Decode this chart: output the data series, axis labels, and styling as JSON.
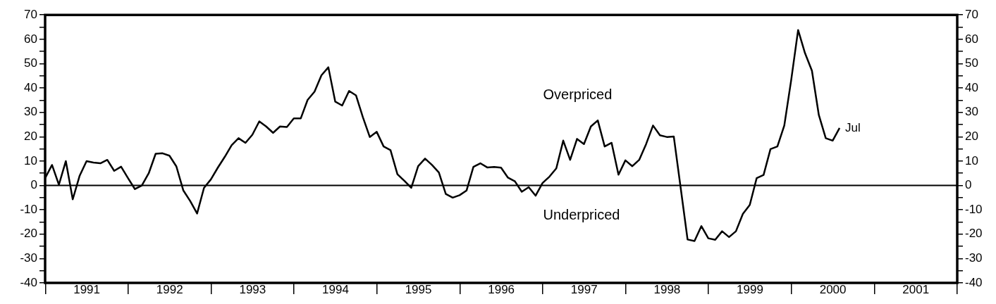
{
  "chart_data": {
    "type": "line",
    "x": [
      "1990-12-31",
      "1991-01-31",
      "1991-02-28",
      "1991-03-31",
      "1991-04-30",
      "1991-05-31",
      "1991-06-30",
      "1991-07-31",
      "1991-08-31",
      "1991-09-30",
      "1991-10-31",
      "1991-11-30",
      "1991-12-31",
      "1992-01-31",
      "1992-02-29",
      "1992-03-31",
      "1992-04-30",
      "1992-05-31",
      "1992-06-30",
      "1992-07-31",
      "1992-08-31",
      "1992-09-30",
      "1992-10-31",
      "1992-11-30",
      "1992-12-31",
      "1993-01-31",
      "1993-02-28",
      "1993-03-31",
      "1993-04-30",
      "1993-05-31",
      "1993-06-30",
      "1993-07-31",
      "1993-08-31",
      "1993-09-30",
      "1993-10-31",
      "1993-11-30",
      "1993-12-31",
      "1994-01-31",
      "1994-02-28",
      "1994-03-31",
      "1994-04-30",
      "1994-05-31",
      "1994-06-30",
      "1994-07-31",
      "1994-08-31",
      "1994-09-30",
      "1994-10-31",
      "1994-11-30",
      "1994-12-31",
      "1995-01-31",
      "1995-02-28",
      "1995-03-31",
      "1995-04-30",
      "1995-05-31",
      "1995-06-30",
      "1995-07-31",
      "1995-08-31",
      "1995-09-30",
      "1995-10-31",
      "1995-11-30",
      "1995-12-31",
      "1996-01-31",
      "1996-02-29",
      "1996-03-31",
      "1996-04-30",
      "1996-05-31",
      "1996-06-30",
      "1996-07-31",
      "1996-08-31",
      "1996-09-30",
      "1996-10-31",
      "1996-11-30",
      "1996-12-31",
      "1997-01-31",
      "1997-02-28",
      "1997-03-31",
      "1997-04-30",
      "1997-05-31",
      "1997-06-30",
      "1997-07-31",
      "1997-08-31",
      "1997-09-30",
      "1997-10-31",
      "1997-11-30",
      "1997-12-31",
      "1998-01-31",
      "1998-02-28",
      "1998-03-31",
      "1998-04-30",
      "1998-05-31",
      "1998-06-30",
      "1998-07-31",
      "1998-08-31",
      "1998-09-30",
      "1998-10-31",
      "1998-11-30",
      "1998-12-31",
      "1999-01-31",
      "1999-02-28",
      "1999-03-31",
      "1999-04-30",
      "1999-05-31",
      "1999-06-30",
      "1999-07-31",
      "1999-08-31",
      "1999-09-30",
      "1999-10-31",
      "1999-11-30",
      "1999-12-31",
      "2000-01-31",
      "2000-02-29",
      "2000-03-31",
      "2000-04-30",
      "2000-05-31",
      "2000-06-30",
      "2000-07-31"
    ],
    "series": [
      {
        "color": "#000000",
        "values": [
          3,
          8.4,
          0.3,
          10,
          -5.7,
          4,
          10,
          9.4,
          9.1,
          10.5,
          6,
          7.7,
          3,
          -1.5,
          0,
          5,
          13,
          13.2,
          12.2,
          7.8,
          -2,
          -6.4,
          -11.5,
          -1,
          2.5,
          7.3,
          11.7,
          16.5,
          19.4,
          17.5,
          20.8,
          26.3,
          24.2,
          21.6,
          24.2,
          24,
          27.5,
          27.5,
          35.1,
          38.5,
          45.2,
          48.5,
          34.4,
          32.8,
          38.8,
          37,
          28,
          19.9,
          22,
          16,
          14.5,
          4.6,
          1.9,
          -1,
          7.9,
          11,
          8.4,
          5.3,
          -3.5,
          -5,
          -4,
          -2.1,
          7.6,
          9.1,
          7.4,
          7.6,
          7.3,
          3.2,
          1.7,
          -2.6,
          -0.7,
          -4.2,
          1,
          3.6,
          7,
          18.4,
          10.5,
          19.1,
          17,
          24.2,
          26.7,
          16,
          17.5,
          4.4,
          10.3,
          7.9,
          10.5,
          17,
          24.6,
          20.6,
          19.9,
          20.1,
          -1,
          -22.2,
          -22.8,
          -16.7,
          -21.7,
          -22.3,
          -18.8,
          -21.2,
          -18.8,
          -11.7,
          -8,
          3,
          4.3,
          14.9,
          16,
          24.6,
          43.3,
          63.8,
          54.3,
          47.1,
          28.9,
          19.4,
          18.4,
          23.6
        ]
      }
    ],
    "xlim": [
      "1990-12-31",
      "2002-01-01"
    ],
    "xticks": [
      {
        "value": "1991-01-01",
        "label": null
      },
      {
        "value": "1991-07-01",
        "label": "1991"
      },
      {
        "value": "1992-01-01",
        "label": null
      },
      {
        "value": "1992-07-01",
        "label": "1992"
      },
      {
        "value": "1993-01-01",
        "label": null
      },
      {
        "value": "1993-07-01",
        "label": "1993"
      },
      {
        "value": "1994-01-01",
        "label": null
      },
      {
        "value": "1994-07-01",
        "label": "1994"
      },
      {
        "value": "1995-01-01",
        "label": null
      },
      {
        "value": "1995-07-01",
        "label": "1995"
      },
      {
        "value": "1996-01-01",
        "label": null
      },
      {
        "value": "1996-07-01",
        "label": "1996"
      },
      {
        "value": "1997-01-01",
        "label": null
      },
      {
        "value": "1997-07-01",
        "label": "1997"
      },
      {
        "value": "1998-01-01",
        "label": null
      },
      {
        "value": "1998-07-01",
        "label": "1998"
      },
      {
        "value": "1999-01-01",
        "label": null
      },
      {
        "value": "1999-07-01",
        "label": "1999"
      },
      {
        "value": "2000-01-01",
        "label": null
      },
      {
        "value": "2000-07-01",
        "label": "2000"
      },
      {
        "value": "2001-01-01",
        "label": null
      },
      {
        "value": "2001-07-01",
        "label": "2001"
      },
      {
        "value": "2002-01-01",
        "label": null
      }
    ],
    "ylim": [
      -40,
      70
    ],
    "yticks": [
      -40,
      {
        "value": -35,
        "label": null
      },
      -30,
      {
        "value": -25,
        "label": null
      },
      -20,
      {
        "value": -15,
        "label": null
      },
      -10,
      {
        "value": -5,
        "label": null
      },
      0,
      {
        "value": 5,
        "label": null
      },
      10,
      {
        "value": 15,
        "label": null
      },
      20,
      {
        "value": 25,
        "label": null
      },
      30,
      {
        "value": 35,
        "label": null
      },
      40,
      {
        "value": 45,
        "label": null
      },
      50,
      {
        "value": 55,
        "label": null
      },
      60,
      {
        "value": 65,
        "label": null
      },
      70
    ],
    "y2lim": [
      -40,
      70
    ],
    "y2ticks": [
      -40,
      {
        "value": -35,
        "label": null
      },
      -30,
      {
        "value": -25,
        "label": null
      },
      -20,
      {
        "value": -15,
        "label": null
      },
      -10,
      {
        "value": -5,
        "label": null
      },
      0,
      {
        "value": 5,
        "label": null
      },
      10,
      {
        "value": 15,
        "label": null
      },
      20,
      {
        "value": 25,
        "label": null
      },
      30,
      {
        "value": 35,
        "label": null
      },
      40,
      {
        "value": 45,
        "label": null
      },
      50,
      {
        "value": 55,
        "label": null
      },
      60,
      {
        "value": 65,
        "label": null
      },
      70
    ],
    "ref_lines": [
      {
        "axis": "y",
        "value": 0,
        "color": "#000000"
      }
    ],
    "annotations": [
      "Overpriced",
      "Underpriced",
      {
        "text": "Jul",
        "x": "2000-07-31",
        "y": 23.6
      }
    ],
    "grid": false,
    "legend": false,
    "marker": "none",
    "line_style": "solid"
  }
}
